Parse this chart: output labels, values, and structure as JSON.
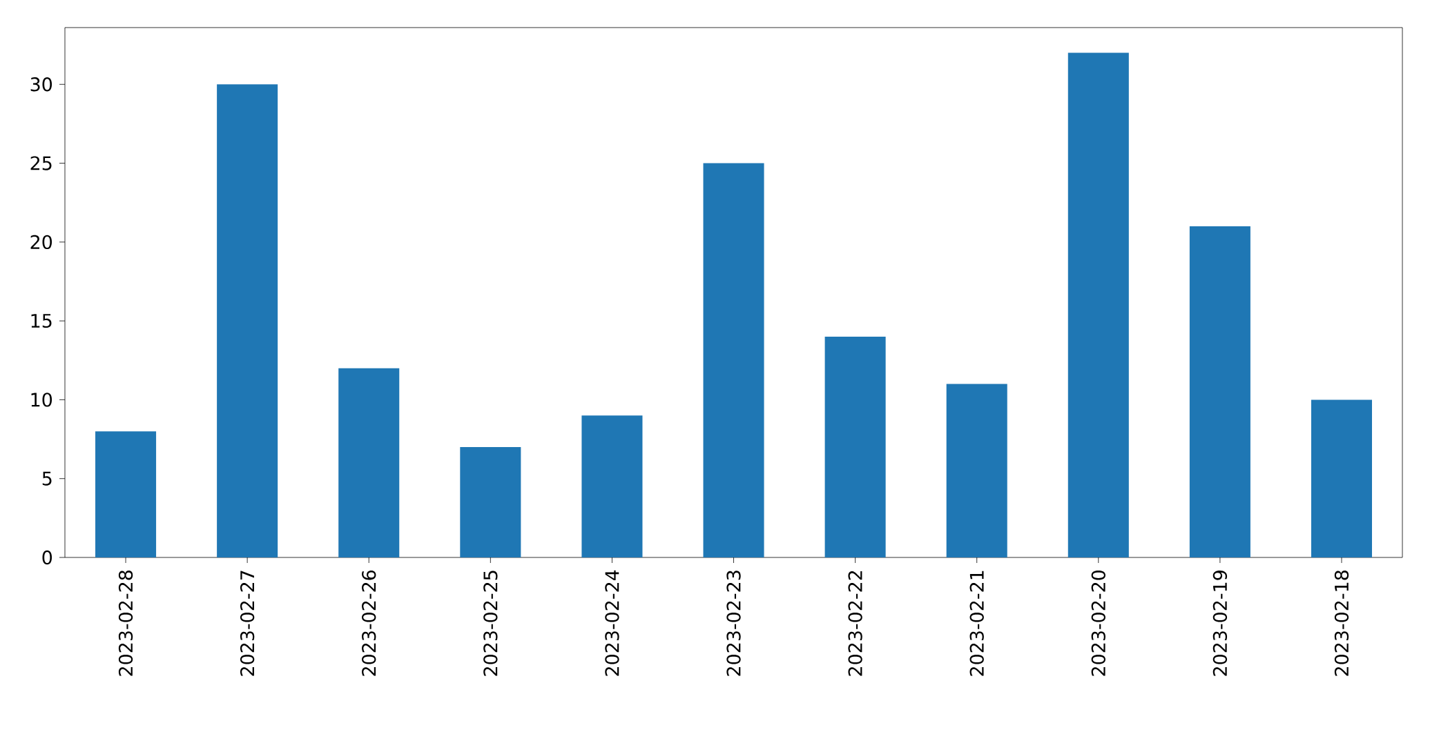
{
  "chart_data": {
    "type": "bar",
    "categories": [
      "2023-02-28",
      "2023-02-27",
      "2023-02-26",
      "2023-02-25",
      "2023-02-24",
      "2023-02-23",
      "2023-02-22",
      "2023-02-21",
      "2023-02-20",
      "2023-02-19",
      "2023-02-18"
    ],
    "values": [
      8,
      30,
      12,
      7,
      9,
      25,
      14,
      11,
      32,
      21,
      10
    ],
    "color": "#1f77b4",
    "ylim": [
      0,
      33.6
    ],
    "yticks": [
      0,
      5,
      10,
      15,
      20,
      25,
      30
    ]
  }
}
